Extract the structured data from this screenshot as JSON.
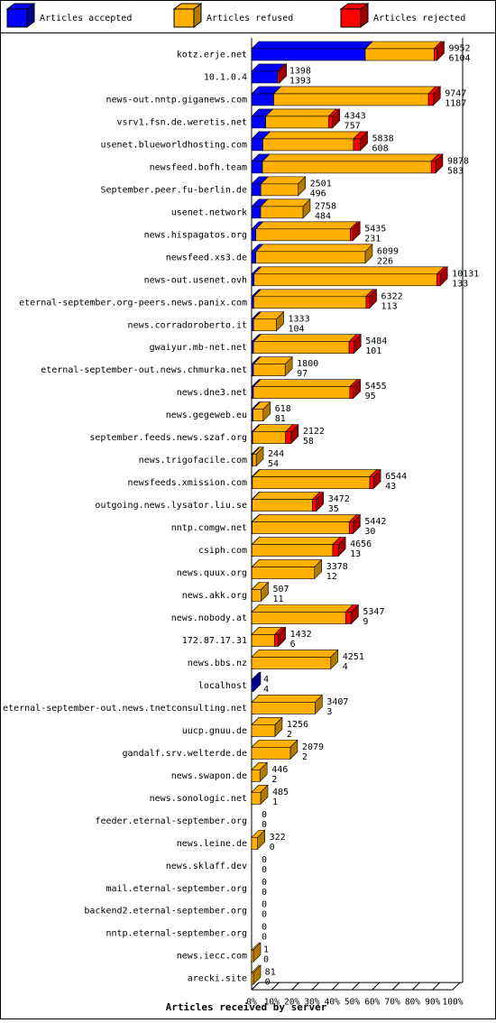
{
  "chart_data": {
    "type": "stacked-bar-3d",
    "orientation": "horizontal",
    "x_label": "Articles received by server",
    "categories": [
      "kotz.erje.net",
      "10.1.0.4",
      "news-out.nntp.giganews.com",
      "vsrv1.fsn.de.weretis.net",
      "usenet.blueworldhosting.com",
      "newsfeed.bofh.team",
      "September.peer.fu-berlin.de",
      "usenet.network",
      "news.hispagatos.org",
      "newsfeed.xs3.de",
      "news-out.usenet.ovh",
      "eternal-september.org-peers.news.panix.com",
      "news.corradoroberto.it",
      "gwaiyur.mb-net.net",
      "eternal-september-out.news.chmurka.net",
      "news.dne3.net",
      "news.gegeweb.eu",
      "september.feeds.news.szaf.org",
      "news.trigofacile.com",
      "newsfeeds.xmission.com",
      "outgoing.news.lysator.liu.se",
      "nntp.comgw.net",
      "csiph.com",
      "news.quux.org",
      "news.akk.org",
      "news.nobody.at",
      "172.87.17.31",
      "news.bbs.nz",
      "localhost",
      "eternal-september-out.news.tnetconsulting.net",
      "uucp.gnuu.de",
      "gandalf.srv.welterde.de",
      "news.swapon.de",
      "news.sonologic.net",
      "feeder.eternal-september.org",
      "news.leine.de",
      "news.sklaff.dev",
      "mail.eternal-september.org",
      "backend2.eternal-september.org",
      "nntp.eternal-september.org",
      "news.iecc.com",
      "arecki.site"
    ],
    "totals": [
      9952,
      1398,
      9747,
      4343,
      5838,
      9878,
      2501,
      2758,
      5435,
      6099,
      10131,
      6322,
      1333,
      5484,
      1800,
      5455,
      618,
      2122,
      244,
      6544,
      3472,
      5442,
      4656,
      3378,
      507,
      5347,
      1432,
      4251,
      4,
      3407,
      1256,
      2079,
      446,
      485,
      0,
      322,
      0,
      0,
      0,
      0,
      1,
      81
    ],
    "series": [
      {
        "name": "Articles accepted",
        "color": "#0000ff",
        "side": "#00008b",
        "values": [
          6104,
          1393,
          1187,
          757,
          608,
          583,
          496,
          484,
          231,
          226,
          133,
          113,
          104,
          101,
          97,
          95,
          81,
          58,
          54,
          43,
          35,
          30,
          13,
          12,
          11,
          9,
          6,
          4,
          4,
          3,
          2,
          2,
          2,
          1,
          0,
          0,
          0,
          0,
          0,
          0,
          0,
          0
        ]
      },
      {
        "name": "Articles refused",
        "color": "#ffb000",
        "side": "#b07a00",
        "values": [
          3698,
          0,
          8310,
          3386,
          4860,
          9065,
          2005,
          2274,
          5064,
          5873,
          9818,
          6029,
          1229,
          5133,
          1703,
          5180,
          537,
          1764,
          190,
          6301,
          3237,
          5212,
          4343,
          3366,
          496,
          5038,
          1226,
          4247,
          0,
          3404,
          1254,
          2077,
          444,
          484,
          0,
          322,
          0,
          0,
          0,
          0,
          1,
          81
        ]
      },
      {
        "name": "Articles rejected",
        "color": "#ff0000",
        "side": "#a00000",
        "values": [
          150,
          5,
          250,
          200,
          370,
          230,
          0,
          0,
          140,
          0,
          180,
          180,
          0,
          250,
          0,
          180,
          0,
          300,
          0,
          200,
          200,
          200,
          300,
          0,
          0,
          300,
          200,
          0,
          0,
          0,
          0,
          0,
          0,
          0,
          0,
          0,
          0,
          0,
          0,
          0,
          0,
          0
        ]
      }
    ],
    "xlim": [
      0,
      10800
    ],
    "xticks": [
      {
        "value": 0,
        "label": "0%"
      },
      {
        "value": 1080,
        "label": "10%"
      },
      {
        "value": 2160,
        "label": "20%"
      },
      {
        "value": 3240,
        "label": "30%"
      },
      {
        "value": 4320,
        "label": "40%"
      },
      {
        "value": 5400,
        "label": "50%"
      },
      {
        "value": 6480,
        "label": "60%"
      },
      {
        "value": 7560,
        "label": "70%"
      },
      {
        "value": 8640,
        "label": "80%"
      },
      {
        "value": 9720,
        "label": "90%"
      },
      {
        "value": 10800,
        "label": "100%"
      }
    ]
  }
}
